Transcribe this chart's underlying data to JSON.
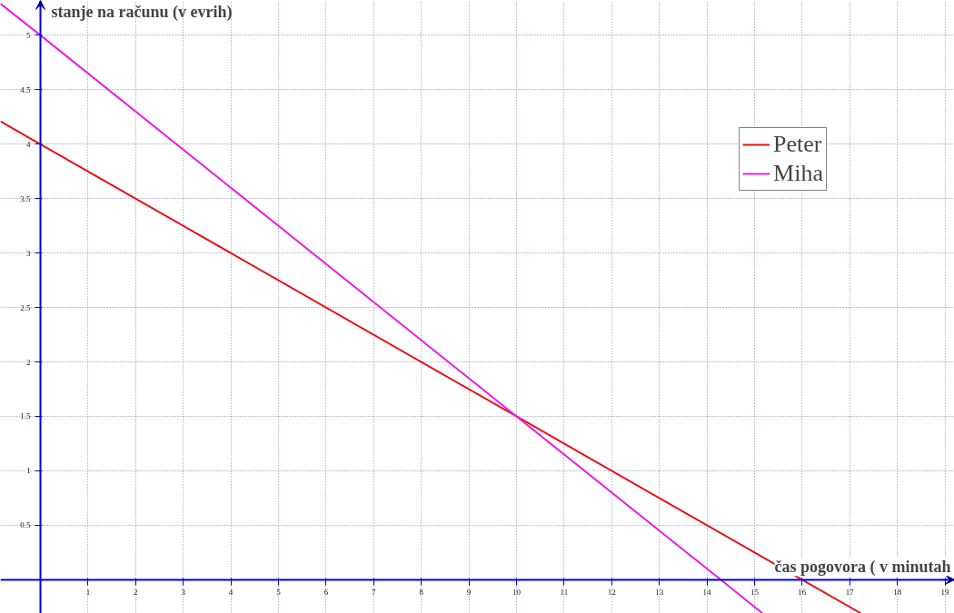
{
  "chart_data": {
    "type": "line",
    "xlabel": "čas pogovora ( v minutah",
    "ylabel": "stanje na računu (v evrih)",
    "xlim": [
      -0.84,
      19.2
    ],
    "ylim": [
      -0.31,
      5.32
    ],
    "xticks": [
      1,
      2,
      3,
      4,
      5,
      6,
      7,
      8,
      9,
      10,
      11,
      12,
      13,
      14,
      15,
      16,
      17,
      18,
      19
    ],
    "yticks": [
      0.5,
      1,
      1.5,
      2,
      2.5,
      3,
      3.5,
      4,
      4.5,
      5
    ],
    "series": [
      {
        "name": "Peter",
        "color": "#e8101a",
        "x": [
          -0.84,
          0,
          10,
          16,
          17.24
        ],
        "values": [
          4.21,
          4,
          1.5,
          0,
          -0.31
        ]
      },
      {
        "name": "Miha",
        "color": "#e81ce8",
        "x": [
          -0.84,
          0,
          10,
          14.29,
          15.17
        ],
        "values": [
          5.29,
          5,
          1.5,
          0,
          -0.31
        ]
      }
    ],
    "grid": true,
    "legend": "top right",
    "line_style": "solid",
    "marker": "none"
  }
}
